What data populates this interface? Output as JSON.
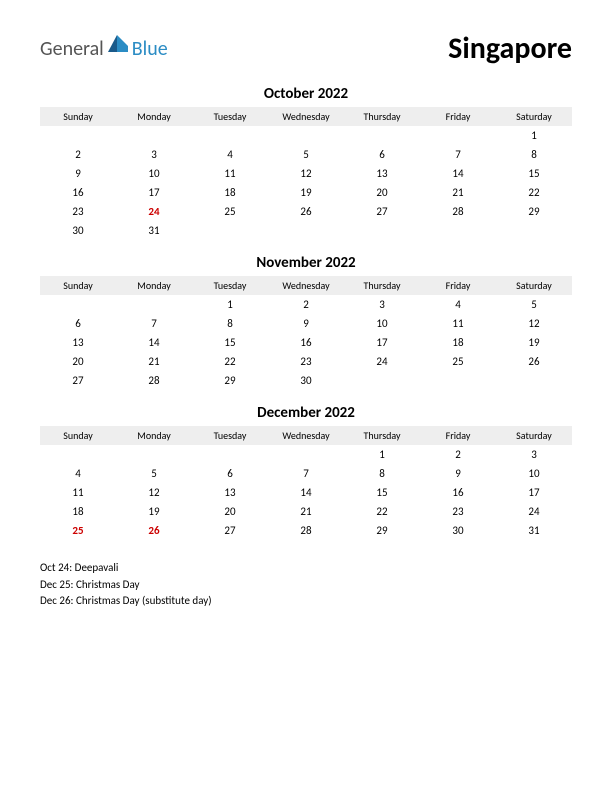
{
  "logo": {
    "general": "General",
    "blue": "Blue"
  },
  "country": "Singapore",
  "weekdays": [
    "Sunday",
    "Monday",
    "Tuesday",
    "Wednesday",
    "Thursday",
    "Friday",
    "Saturday"
  ],
  "colors": {
    "holiday": "#cc0000",
    "header_bg": "#eeeeee",
    "text": "#000000",
    "logo_gray": "#555555",
    "logo_blue": "#2b8cc4"
  },
  "months": [
    {
      "title": "October 2022",
      "weeks": [
        [
          null,
          null,
          null,
          null,
          null,
          null,
          {
            "d": 1
          }
        ],
        [
          {
            "d": 2
          },
          {
            "d": 3
          },
          {
            "d": 4
          },
          {
            "d": 5
          },
          {
            "d": 6
          },
          {
            "d": 7
          },
          {
            "d": 8
          }
        ],
        [
          {
            "d": 9
          },
          {
            "d": 10
          },
          {
            "d": 11
          },
          {
            "d": 12
          },
          {
            "d": 13
          },
          {
            "d": 14
          },
          {
            "d": 15
          }
        ],
        [
          {
            "d": 16
          },
          {
            "d": 17
          },
          {
            "d": 18
          },
          {
            "d": 19
          },
          {
            "d": 20
          },
          {
            "d": 21
          },
          {
            "d": 22
          }
        ],
        [
          {
            "d": 23
          },
          {
            "d": 24,
            "h": true
          },
          {
            "d": 25
          },
          {
            "d": 26
          },
          {
            "d": 27
          },
          {
            "d": 28
          },
          {
            "d": 29
          }
        ],
        [
          {
            "d": 30
          },
          {
            "d": 31
          },
          null,
          null,
          null,
          null,
          null
        ]
      ]
    },
    {
      "title": "November 2022",
      "weeks": [
        [
          null,
          null,
          {
            "d": 1
          },
          {
            "d": 2
          },
          {
            "d": 3
          },
          {
            "d": 4
          },
          {
            "d": 5
          }
        ],
        [
          {
            "d": 6
          },
          {
            "d": 7
          },
          {
            "d": 8
          },
          {
            "d": 9
          },
          {
            "d": 10
          },
          {
            "d": 11
          },
          {
            "d": 12
          }
        ],
        [
          {
            "d": 13
          },
          {
            "d": 14
          },
          {
            "d": 15
          },
          {
            "d": 16
          },
          {
            "d": 17
          },
          {
            "d": 18
          },
          {
            "d": 19
          }
        ],
        [
          {
            "d": 20
          },
          {
            "d": 21
          },
          {
            "d": 22
          },
          {
            "d": 23
          },
          {
            "d": 24
          },
          {
            "d": 25
          },
          {
            "d": 26
          }
        ],
        [
          {
            "d": 27
          },
          {
            "d": 28
          },
          {
            "d": 29
          },
          {
            "d": 30
          },
          null,
          null,
          null
        ]
      ]
    },
    {
      "title": "December 2022",
      "weeks": [
        [
          null,
          null,
          null,
          null,
          {
            "d": 1
          },
          {
            "d": 2
          },
          {
            "d": 3
          }
        ],
        [
          {
            "d": 4
          },
          {
            "d": 5
          },
          {
            "d": 6
          },
          {
            "d": 7
          },
          {
            "d": 8
          },
          {
            "d": 9
          },
          {
            "d": 10
          }
        ],
        [
          {
            "d": 11
          },
          {
            "d": 12
          },
          {
            "d": 13
          },
          {
            "d": 14
          },
          {
            "d": 15
          },
          {
            "d": 16
          },
          {
            "d": 17
          }
        ],
        [
          {
            "d": 18
          },
          {
            "d": 19
          },
          {
            "d": 20
          },
          {
            "d": 21
          },
          {
            "d": 22
          },
          {
            "d": 23
          },
          {
            "d": 24
          }
        ],
        [
          {
            "d": 25,
            "h": true
          },
          {
            "d": 26,
            "h": true
          },
          {
            "d": 27
          },
          {
            "d": 28
          },
          {
            "d": 29
          },
          {
            "d": 30
          },
          {
            "d": 31
          }
        ]
      ]
    }
  ],
  "holidays": [
    "Oct 24: Deepavali",
    "Dec 25: Christmas Day",
    "Dec 26: Christmas Day (substitute day)"
  ]
}
